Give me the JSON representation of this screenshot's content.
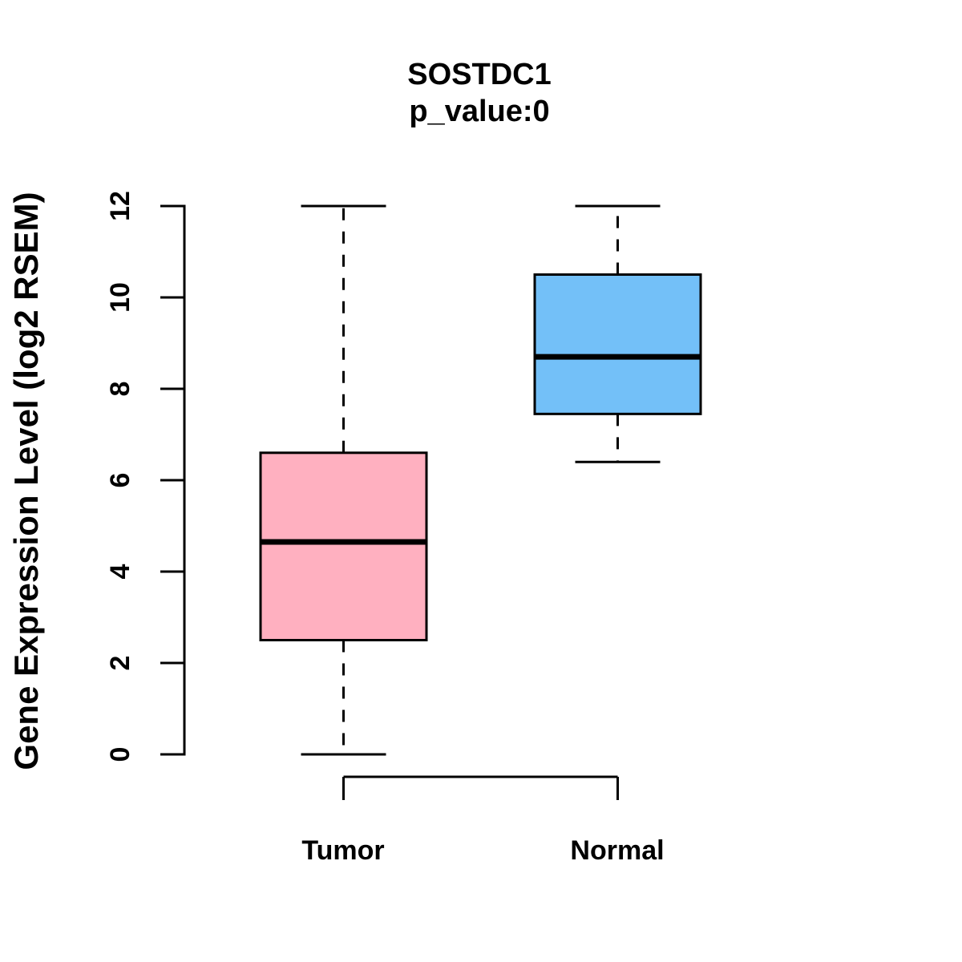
{
  "chart_data": {
    "type": "boxplot",
    "title": "SOSTDC1",
    "subtitle": "p_value:0",
    "ylabel": "Gene Expression Level (log2 RSEM)",
    "xlabel": "",
    "ylim": [
      0,
      12
    ],
    "yticks": [
      0,
      2,
      4,
      6,
      8,
      10,
      12
    ],
    "categories": [
      "Tumor",
      "Normal"
    ],
    "series": [
      {
        "name": "Tumor",
        "fill_color": "#FFB0C0",
        "whisker_low": 0,
        "q1": 2.5,
        "median": 4.65,
        "q3": 6.6,
        "whisker_high": 12
      },
      {
        "name": "Normal",
        "fill_color": "#73C0F8",
        "whisker_low": 6.4,
        "q1": 7.45,
        "median": 8.7,
        "q3": 10.5,
        "whisker_high": 12
      }
    ],
    "stroke_color": "#000000",
    "background_color": "#FFFFFF",
    "whisker_style": "dashed",
    "legend_position": "none",
    "grid": false
  }
}
